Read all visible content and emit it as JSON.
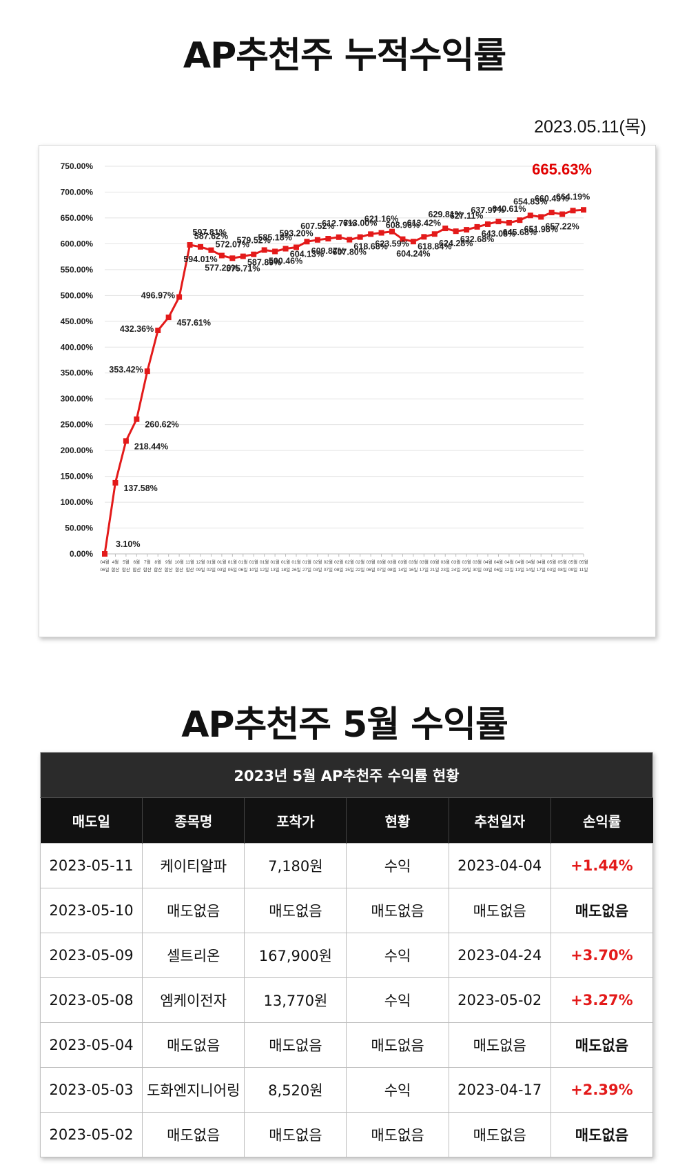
{
  "titles": {
    "cumulative": "AP추천주 누적수익률",
    "monthly": "AP추천주 5월 수익률"
  },
  "date": "2023.05.11(목)",
  "colors": {
    "line": "#e31a1a",
    "final_label": "#e10000",
    "positive": "#e31a1a"
  },
  "chart_data": {
    "type": "line",
    "title": "",
    "xlabel": "",
    "ylabel": "",
    "ylim": [
      0,
      750
    ],
    "y_ticks": [
      "0.00%",
      "50.00%",
      "100.00%",
      "150.00%",
      "200.00%",
      "250.00%",
      "300.00%",
      "350.00%",
      "400.00%",
      "450.00%",
      "500.00%",
      "550.00%",
      "600.00%",
      "650.00%",
      "700.00%",
      "750.00%"
    ],
    "grid": true,
    "final_label": "665.63%",
    "x": [
      "04월 06일",
      "4월 합산",
      "5월 합산",
      "6월 합산",
      "7월 합산",
      "8월 합산",
      "9월 합산",
      "10월 합산",
      "11월 합산",
      "12월 09일",
      "01월 02일",
      "01월 03일",
      "01월 05일",
      "01월 06일",
      "01월 10일",
      "01월 12일",
      "01월 13일",
      "01월 18일",
      "01월 26일",
      "01월 27일",
      "02월 03일",
      "02월 07일",
      "02월 08일",
      "02월 15일",
      "02월 22일",
      "03월 06일",
      "03월 07일",
      "03월 08일",
      "03월 14일",
      "03월 16일",
      "03월 17일",
      "03월 21일",
      "03월 23일",
      "03월 24일",
      "03월 29일",
      "03월 30일",
      "04월 03일",
      "04월 06일",
      "04월 12일",
      "04월 13일",
      "04월 14일",
      "04월 17일",
      "05월 03일",
      "05월 08일",
      "05월 09일",
      "05월 11일"
    ],
    "series": [
      {
        "values": [
          0,
          137.58,
          218.44,
          260.62,
          353.42,
          432.36,
          457.61,
          496.97,
          597.81,
          594.01,
          587.62,
          577.2,
          572.07,
          575.71,
          579.52,
          587.89,
          585.18,
          590.46,
          593.2,
          604.13,
          607.52,
          609.87,
          612.77,
          607.8,
          613.0,
          618.68,
          621.16,
          623.59,
          608.96,
          604.24,
          613.42,
          618.84,
          629.81,
          624.28,
          627.11,
          632.68,
          637.97,
          643.08,
          640.61,
          645.68,
          654.83,
          651.98,
          660.49,
          657.22,
          664.19,
          665.63
        ],
        "labels": [
          "",
          "137.58%",
          "218.44%",
          "260.62%",
          "353.42%",
          "432.36%",
          "457.61%",
          "496.97%",
          "597.81%",
          "594.01%",
          "587.62%",
          "577.20%",
          "572.07%",
          "575.71%",
          "579.52%",
          "587.89%",
          "585.18%",
          "590.46%",
          "593.20%",
          "604.13%",
          "607.52%",
          "609.87%",
          "612.77%",
          "607.80%",
          "613.00%",
          "618.68%",
          "621.16%",
          "623.59%",
          "608.96%",
          "604.24%",
          "613.42%",
          "618.84%",
          "629.81%",
          "624.28%",
          "627.11%",
          "632.68%",
          "637.97%",
          "643.08%",
          "640.61%",
          "645.68%",
          "654.83%",
          "651.98%",
          "660.49%",
          "657.22%",
          "664.19%",
          ""
        ]
      }
    ],
    "extra_labels": [
      "3.10%"
    ]
  },
  "table": {
    "caption": "2023년 5월 AP추천주 수익률 현황",
    "headers": [
      "매도일",
      "종목명",
      "포착가",
      "현황",
      "추천일자",
      "손익률"
    ],
    "rows": [
      [
        "2023-05-11",
        "케이티알파",
        "7,180원",
        "수익",
        "2023-04-04",
        "+1.44%"
      ],
      [
        "2023-05-10",
        "매도없음",
        "매도없음",
        "매도없음",
        "매도없음",
        "매도없음"
      ],
      [
        "2023-05-09",
        "셀트리온",
        "167,900원",
        "수익",
        "2023-04-24",
        "+3.70%"
      ],
      [
        "2023-05-08",
        "엠케이전자",
        "13,770원",
        "수익",
        "2023-05-02",
        "+3.27%"
      ],
      [
        "2023-05-04",
        "매도없음",
        "매도없음",
        "매도없음",
        "매도없음",
        "매도없음"
      ],
      [
        "2023-05-03",
        "도화엔지니어링",
        "8,520원",
        "수익",
        "2023-04-17",
        "+2.39%"
      ],
      [
        "2023-05-02",
        "매도없음",
        "매도없음",
        "매도없음",
        "매도없음",
        "매도없음"
      ]
    ]
  }
}
